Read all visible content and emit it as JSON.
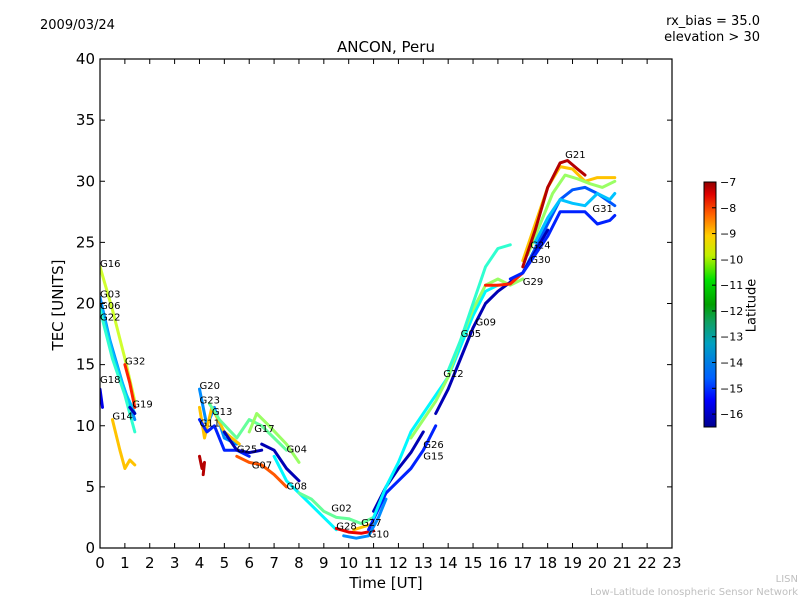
{
  "header": {
    "date": "2009/03/24",
    "rx_bias": "rx_bias = 35.0",
    "elevation": "elevation > 30"
  },
  "footer": {
    "org_short": "LISN",
    "org_full": "Low-Latitude Ionospheric Sensor Network"
  },
  "chart_data": {
    "type": "line",
    "title": "ANCON, Peru",
    "xlabel": "Time [UT]",
    "ylabel": "TEC [UNITS]",
    "xlim": [
      0,
      23
    ],
    "ylim": [
      0,
      40
    ],
    "xticks": [
      0,
      1,
      2,
      3,
      4,
      5,
      6,
      7,
      8,
      9,
      10,
      11,
      12,
      13,
      14,
      15,
      16,
      17,
      18,
      19,
      20,
      21,
      22,
      23
    ],
    "yticks": [
      0,
      5,
      10,
      15,
      20,
      25,
      30,
      35,
      40
    ],
    "grid": false,
    "colorbar": {
      "label": "Latitude",
      "range": [
        -16.5,
        -7
      ],
      "ticks": [
        -7,
        -8,
        -9,
        -10,
        -11,
        -12,
        -13,
        -14,
        -15,
        -16
      ],
      "colormap": "jet",
      "placement": "right"
    },
    "series": [
      {
        "name": "G16",
        "lat": -11.0,
        "label_at": [
          0.0,
          23.0
        ],
        "points": [
          [
            0.0,
            23.0
          ],
          [
            0.5,
            19.5
          ],
          [
            1.0,
            15.5
          ],
          [
            1.4,
            12.0
          ]
        ]
      },
      {
        "name": "G03",
        "lat": -14.0,
        "label_at": [
          0.0,
          20.5
        ],
        "points": [
          [
            0.0,
            20.5
          ],
          [
            0.4,
            17.0
          ],
          [
            0.9,
            13.5
          ],
          [
            1.4,
            10.5
          ]
        ]
      },
      {
        "name": "G06",
        "lat": -13.5,
        "label_at": [
          0.0,
          19.8
        ],
        "points": [
          [
            0.0,
            20.0
          ],
          [
            0.5,
            16.0
          ],
          [
            1.0,
            12.8
          ],
          [
            1.4,
            11.0
          ]
        ]
      },
      {
        "name": "G22",
        "lat": -12.5,
        "label_at": [
          0.0,
          19.3
        ],
        "points": [
          [
            0.0,
            19.5
          ],
          [
            0.5,
            15.5
          ],
          [
            1.0,
            12.5
          ],
          [
            1.4,
            9.5
          ]
        ]
      },
      {
        "name": "G32",
        "lat": -8.5,
        "label_at": [
          1.0,
          15.0
        ],
        "points": [
          [
            1.0,
            15.0
          ],
          [
            1.2,
            13.5
          ],
          [
            1.4,
            11.5
          ]
        ]
      },
      {
        "name": "G18",
        "lat": -15.5,
        "label_at": [
          0.0,
          13.5
        ],
        "points": [
          [
            0.0,
            13.0
          ],
          [
            0.1,
            11.5
          ]
        ]
      },
      {
        "name": "G19",
        "lat": -16.0,
        "label_at": [
          1.3,
          11.5
        ],
        "points": [
          [
            1.2,
            11.5
          ],
          [
            1.4,
            11.0
          ]
        ]
      },
      {
        "name": "G14",
        "lat": -10.0,
        "label_at": [
          0.5,
          10.5
        ],
        "points": [
          [
            0.5,
            10.5
          ],
          [
            0.8,
            8.0
          ],
          [
            1.0,
            6.5
          ],
          [
            1.2,
            7.2
          ],
          [
            1.4,
            6.8
          ]
        ]
      },
      {
        "name": "G20",
        "lat": -14.0,
        "label_at": [
          4.0,
          13.0
        ],
        "points": [
          [
            4.0,
            13.0
          ],
          [
            4.3,
            10.0
          ],
          [
            4.6,
            11.5
          ],
          [
            5.0,
            9.0
          ],
          [
            5.5,
            8.5
          ]
        ]
      },
      {
        "name": "G23",
        "lat": -10.0,
        "label_at": [
          4.0,
          11.8
        ],
        "points": [
          [
            4.0,
            11.5
          ],
          [
            4.2,
            9.0
          ],
          [
            4.5,
            11.5
          ],
          [
            5.0,
            9.5
          ],
          [
            5.6,
            8.5
          ]
        ]
      },
      {
        "name": "G13",
        "lat": -12.0,
        "label_at": [
          4.5,
          11.5
        ],
        "points": [
          [
            4.4,
            11.8
          ],
          [
            4.8,
            10.5
          ],
          [
            5.5,
            9.0
          ],
          [
            6.0,
            10.5
          ],
          [
            6.5,
            10.0
          ],
          [
            7.0,
            9.0
          ],
          [
            7.5,
            8.0
          ]
        ]
      },
      {
        "name": "G11",
        "lat": -15.0,
        "label_at": [
          4.0,
          10.3
        ],
        "points": [
          [
            4.0,
            10.5
          ],
          [
            4.3,
            9.5
          ],
          [
            4.6,
            10.0
          ],
          [
            5.0,
            8.0
          ],
          [
            5.5,
            8.0
          ],
          [
            6.0,
            7.5
          ]
        ]
      },
      {
        "name": "G17",
        "lat": -11.5,
        "label_at": [
          6.2,
          9.5
        ],
        "points": [
          [
            6.0,
            9.5
          ],
          [
            6.3,
            11.0
          ],
          [
            6.8,
            10.0
          ],
          [
            7.5,
            8.5
          ],
          [
            8.0,
            7.0
          ]
        ]
      },
      {
        "name": "G25",
        "lat": -16.0,
        "label_at": [
          5.5,
          7.8
        ],
        "points": [
          [
            5.0,
            9.5
          ],
          [
            5.5,
            8.0
          ],
          [
            6.0,
            7.8
          ],
          [
            6.5,
            8.0
          ]
        ]
      },
      {
        "name": "G04",
        "lat": -16.0,
        "label_at": [
          7.5,
          7.8
        ],
        "points": [
          [
            6.5,
            8.5
          ],
          [
            7.0,
            8.0
          ],
          [
            7.5,
            6.5
          ],
          [
            8.0,
            5.5
          ]
        ]
      },
      {
        "name": "G07",
        "lat": -9.0,
        "label_at": [
          6.1,
          6.5
        ],
        "points": [
          [
            5.5,
            7.5
          ],
          [
            6.0,
            7.0
          ],
          [
            6.5,
            6.8
          ],
          [
            7.0,
            6.0
          ],
          [
            7.5,
            5.0
          ]
        ]
      },
      {
        "name": "G08",
        "lat": -13.0,
        "label_at": [
          7.5,
          4.8
        ],
        "points": [
          [
            7.0,
            7.5
          ],
          [
            7.5,
            5.5
          ],
          [
            8.0,
            4.5
          ],
          [
            8.5,
            3.5
          ],
          [
            9.0,
            2.5
          ],
          [
            9.5,
            1.5
          ]
        ]
      },
      {
        "name": "G02",
        "lat": -12.0,
        "label_at": [
          9.3,
          3.0
        ],
        "points": [
          [
            8.0,
            4.5
          ],
          [
            8.5,
            4.0
          ],
          [
            9.0,
            3.0
          ],
          [
            9.5,
            2.5
          ],
          [
            10.0,
            2.4
          ],
          [
            10.5,
            2.0
          ],
          [
            11.0,
            2.5
          ]
        ]
      },
      {
        "name": "G28",
        "lat": -8.0,
        "label_at": [
          9.5,
          1.5
        ],
        "points": [
          [
            9.5,
            1.6
          ],
          [
            10.0,
            1.3
          ],
          [
            10.5,
            1.2
          ],
          [
            11.0,
            1.4
          ]
        ]
      },
      {
        "name": "G27",
        "lat": -10.0,
        "label_at": [
          10.5,
          1.8
        ],
        "points": [
          [
            10.2,
            1.5
          ],
          [
            10.7,
            1.8
          ],
          [
            11.0,
            2.0
          ]
        ]
      },
      {
        "name": "G10",
        "lat": -14.0,
        "label_at": [
          10.8,
          1.2
        ],
        "points": [
          [
            9.8,
            1.0
          ],
          [
            10.3,
            0.8
          ],
          [
            10.8,
            1.0
          ],
          [
            11.2,
            2.5
          ],
          [
            11.5,
            4.0
          ]
        ]
      },
      {
        "name": "G26",
        "lat": -16.0,
        "label_at": [
          13.0,
          8.2
        ],
        "points": [
          [
            11.0,
            3.0
          ],
          [
            11.5,
            5.0
          ],
          [
            12.0,
            6.5
          ],
          [
            12.5,
            7.8
          ],
          [
            13.0,
            9.5
          ]
        ]
      },
      {
        "name": "G15",
        "lat": -15.0,
        "label_at": [
          13.0,
          7.5
        ],
        "points": [
          [
            10.8,
            1.5
          ],
          [
            11.5,
            4.5
          ],
          [
            12.0,
            5.5
          ],
          [
            12.5,
            6.5
          ],
          [
            13.0,
            8.0
          ],
          [
            13.5,
            10.0
          ]
        ]
      },
      {
        "name": "G12",
        "lat": -13.0,
        "label_at": [
          13.8,
          14.0
        ],
        "points": [
          [
            11.0,
            2.5
          ],
          [
            11.5,
            5.0
          ],
          [
            12.0,
            7.0
          ],
          [
            12.5,
            9.5
          ],
          [
            13.0,
            11.0
          ],
          [
            13.5,
            12.5
          ],
          [
            14.0,
            14.0
          ],
          [
            14.5,
            16.5
          ],
          [
            15.0,
            19.0
          ],
          [
            15.5,
            21.0
          ],
          [
            16.0,
            21.5
          ]
        ]
      },
      {
        "name": "G05",
        "lat": -11.5,
        "label_at": [
          14.5,
          17.5
        ],
        "points": [
          [
            12.5,
            9.0
          ],
          [
            13.0,
            10.5
          ],
          [
            13.5,
            12.0
          ],
          [
            14.0,
            14.0
          ],
          [
            14.5,
            17.0
          ],
          [
            15.0,
            19.5
          ],
          [
            15.5,
            21.5
          ],
          [
            16.0,
            22.0
          ],
          [
            16.5,
            21.5
          ],
          [
            17.0,
            22.0
          ]
        ]
      },
      {
        "name": "G09",
        "lat": -16.0,
        "label_at": [
          15.1,
          18.2
        ],
        "points": [
          [
            13.5,
            11.0
          ],
          [
            14.0,
            13.0
          ],
          [
            14.5,
            15.5
          ],
          [
            15.0,
            18.0
          ],
          [
            15.5,
            20.0
          ],
          [
            16.0,
            21.0
          ],
          [
            17.0,
            22.5
          ],
          [
            18.0,
            26.0
          ]
        ]
      },
      {
        "name": "G29",
        "lat": -8.5,
        "label_at": [
          17.0,
          21.5
        ],
        "points": [
          [
            15.5,
            21.5
          ],
          [
            16.0,
            21.5
          ],
          [
            16.5,
            21.6
          ],
          [
            17.0,
            22.5
          ]
        ]
      },
      {
        "name": "G30",
        "lat": -15.0,
        "label_at": [
          17.3,
          23.3
        ],
        "points": [
          [
            16.5,
            22.0
          ],
          [
            17.0,
            22.5
          ],
          [
            17.5,
            24.0
          ],
          [
            18.0,
            25.5
          ],
          [
            18.5,
            27.5
          ],
          [
            19.0,
            27.5
          ],
          [
            19.5,
            27.5
          ],
          [
            20.0,
            26.5
          ],
          [
            20.5,
            26.8
          ],
          [
            20.7,
            27.2
          ]
        ]
      },
      {
        "name": "G24",
        "lat": -12.5,
        "label_at": [
          17.3,
          24.5
        ],
        "points": [
          [
            14.0,
            14.5
          ],
          [
            14.5,
            17.0
          ],
          [
            15.0,
            20.0
          ],
          [
            15.5,
            23.0
          ],
          [
            16.0,
            24.5
          ],
          [
            16.5,
            24.8
          ]
        ]
      },
      {
        "name": "G21",
        "lat": -7.5,
        "label_at": [
          18.7,
          31.9
        ],
        "points": [
          [
            17.0,
            23.0
          ],
          [
            17.5,
            26.0
          ],
          [
            18.0,
            29.5
          ],
          [
            18.5,
            31.5
          ],
          [
            18.8,
            31.7
          ],
          [
            19.2,
            31.0
          ],
          [
            19.5,
            30.5
          ]
        ]
      },
      {
        "name": "G31",
        "lat": -13.5,
        "label_at": [
          19.8,
          27.5
        ],
        "points": [
          [
            17.5,
            25.0
          ],
          [
            18.0,
            27.0
          ],
          [
            18.5,
            28.5
          ],
          [
            19.0,
            28.2
          ],
          [
            19.5,
            28.0
          ],
          [
            20.0,
            29.0
          ],
          [
            20.5,
            28.5
          ],
          [
            20.7,
            29.0
          ]
        ]
      }
    ],
    "extra_traces": [
      {
        "name": "G21-yellow",
        "lat": -10.0,
        "points": [
          [
            17.0,
            23.5
          ],
          [
            17.5,
            26.5
          ],
          [
            18.0,
            29.5
          ],
          [
            18.5,
            31.2
          ],
          [
            19.0,
            31.0
          ],
          [
            19.5,
            30.0
          ],
          [
            20.0,
            30.3
          ],
          [
            20.7,
            30.3
          ]
        ]
      },
      {
        "name": "G31-teal",
        "lat": -14.5,
        "points": [
          [
            17.0,
            22.5
          ],
          [
            17.5,
            24.5
          ],
          [
            18.0,
            26.5
          ],
          [
            18.5,
            28.5
          ],
          [
            19.0,
            29.3
          ],
          [
            19.5,
            29.5
          ],
          [
            20.0,
            29.0
          ],
          [
            20.7,
            28.0
          ]
        ]
      },
      {
        "name": "G21-green",
        "lat": -11.5,
        "points": [
          [
            17.2,
            24.0
          ],
          [
            17.7,
            26.5
          ],
          [
            18.2,
            29.0
          ],
          [
            18.7,
            30.5
          ],
          [
            19.2,
            30.2
          ],
          [
            19.7,
            29.8
          ],
          [
            20.2,
            29.5
          ],
          [
            20.7,
            30.0
          ]
        ]
      },
      {
        "name": "G04-red",
        "lat": -7.5,
        "points": [
          [
            4.0,
            7.5
          ],
          [
            4.1,
            6.5
          ],
          [
            4.2,
            7.0
          ],
          [
            4.15,
            6.0
          ]
        ]
      }
    ]
  }
}
